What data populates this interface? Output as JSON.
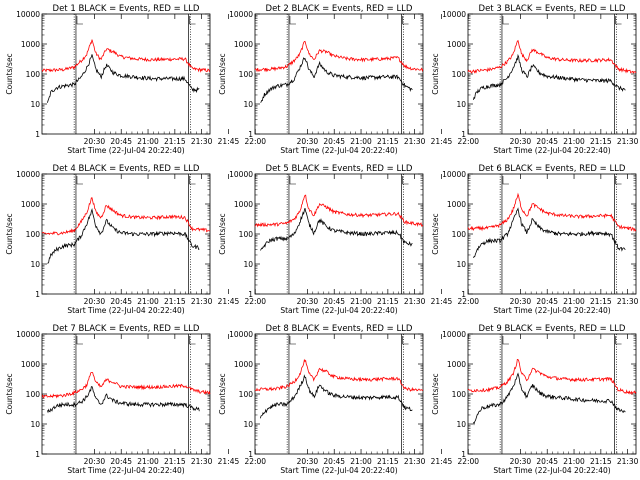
{
  "chart_data": {
    "type": "line",
    "y_scale": "log",
    "ylim": [
      1,
      10000
    ],
    "ylabel": "Counts/sec",
    "xlabel": "Start Time (22-Jul-04 20:22:40)",
    "x_ticks": [
      "20:30",
      "20:45",
      "21:00",
      "21:15",
      "21:30",
      "21:45",
      "22:00"
    ],
    "y_ticks": [
      "1",
      "10",
      "100",
      "1000",
      "10000"
    ],
    "x_range_minutes": [
      -22,
      72
    ],
    "vertical_lines": [
      {
        "style": "dotted",
        "x_minutes": -4
      },
      {
        "style": "solid",
        "x_minutes": -3
      },
      {
        "style": "solid",
        "x_minutes": 60
      },
      {
        "style": "dotted",
        "x_minutes": 61
      }
    ],
    "series_colors": {
      "events": "#000000",
      "lld": "#ff0000"
    },
    "panels": [
      {
        "title": "Det 1  BLACK = Events, RED = LLD",
        "lld_x": [
          -22,
          -10,
          -4,
          0,
          3,
          6,
          8,
          11,
          14,
          18,
          22,
          30,
          40,
          50,
          58,
          62,
          66,
          72
        ],
        "lld_y": [
          130,
          140,
          170,
          280,
          450,
          1400,
          500,
          300,
          680,
          550,
          380,
          320,
          300,
          310,
          320,
          150,
          140,
          130
        ],
        "ev_x": [
          -19,
          -17,
          -14,
          -10,
          -4,
          0,
          3,
          6,
          8,
          11,
          14,
          18,
          22,
          30,
          40,
          50,
          58,
          62,
          66
        ],
        "ev_y": [
          10,
          25,
          35,
          40,
          45,
          80,
          160,
          400,
          150,
          80,
          200,
          110,
          90,
          80,
          70,
          70,
          70,
          30,
          30
        ]
      },
      {
        "title": "Det 2  BLACK = Events, RED = LLD",
        "lld_x": [
          -22,
          -10,
          -4,
          0,
          3,
          6,
          8,
          11,
          14,
          18,
          22,
          30,
          40,
          50,
          58,
          62,
          66,
          72
        ],
        "lld_y": [
          140,
          150,
          180,
          280,
          450,
          1300,
          500,
          300,
          600,
          550,
          400,
          320,
          300,
          320,
          350,
          180,
          150,
          140
        ],
        "ev_x": [
          -19,
          -17,
          -14,
          -10,
          -4,
          0,
          3,
          6,
          8,
          11,
          14,
          18,
          22,
          30,
          40,
          50,
          58,
          62,
          66
        ],
        "ev_y": [
          10,
          20,
          30,
          40,
          45,
          70,
          160,
          380,
          150,
          80,
          220,
          120,
          90,
          80,
          75,
          80,
          80,
          40,
          30
        ]
      },
      {
        "title": "Det 3  BLACK = Events, RED = LLD",
        "lld_x": [
          -22,
          -10,
          -4,
          0,
          3,
          6,
          8,
          11,
          14,
          18,
          22,
          30,
          40,
          50,
          58,
          62,
          66,
          72
        ],
        "lld_y": [
          120,
          140,
          170,
          260,
          420,
          1400,
          450,
          290,
          650,
          500,
          350,
          300,
          280,
          290,
          300,
          150,
          130,
          110
        ],
        "ev_x": [
          -19,
          -17,
          -14,
          -10,
          -4,
          0,
          3,
          6,
          8,
          11,
          14,
          18,
          22,
          30,
          40,
          50,
          58,
          62,
          66
        ],
        "ev_y": [
          15,
          25,
          35,
          40,
          45,
          75,
          150,
          380,
          140,
          80,
          190,
          110,
          85,
          75,
          65,
          60,
          60,
          35,
          30
        ]
      },
      {
        "title": "Det 4  BLACK = Events, RED = LLD",
        "lld_x": [
          -22,
          -10,
          -4,
          0,
          3,
          6,
          8,
          11,
          14,
          18,
          22,
          30,
          40,
          50,
          58,
          62,
          66,
          72
        ],
        "lld_y": [
          100,
          110,
          130,
          260,
          520,
          1700,
          550,
          350,
          900,
          600,
          420,
          360,
          350,
          380,
          360,
          150,
          140,
          130
        ],
        "ev_x": [
          -19,
          -17,
          -14,
          -10,
          -4,
          0,
          3,
          6,
          8,
          11,
          14,
          18,
          22,
          30,
          40,
          50,
          58,
          62,
          66
        ],
        "ev_y": [
          10,
          20,
          30,
          40,
          45,
          90,
          220,
          600,
          200,
          100,
          280,
          150,
          110,
          100,
          100,
          110,
          100,
          40,
          35
        ]
      },
      {
        "title": "Det 5  BLACK = Events, RED = LLD",
        "lld_x": [
          -22,
          -10,
          -4,
          0,
          3,
          6,
          8,
          11,
          14,
          18,
          22,
          30,
          40,
          50,
          58,
          62,
          66,
          72
        ],
        "lld_y": [
          200,
          210,
          230,
          320,
          560,
          2200,
          700,
          420,
          1000,
          800,
          550,
          450,
          420,
          450,
          480,
          250,
          230,
          200
        ],
        "ev_x": [
          -19,
          -17,
          -14,
          -10,
          -4,
          0,
          3,
          6,
          8,
          11,
          14,
          18,
          22,
          30,
          40,
          50,
          58,
          62,
          66
        ],
        "ev_y": [
          25,
          40,
          60,
          70,
          70,
          100,
          250,
          700,
          230,
          110,
          300,
          180,
          130,
          110,
          100,
          110,
          110,
          50,
          45
        ]
      },
      {
        "title": "Det 6  BLACK = Events, RED = LLD",
        "lld_x": [
          -22,
          -10,
          -4,
          0,
          3,
          6,
          8,
          11,
          14,
          18,
          22,
          30,
          40,
          50,
          58,
          62,
          66,
          72
        ],
        "lld_y": [
          150,
          160,
          200,
          300,
          600,
          2000,
          700,
          400,
          1000,
          700,
          500,
          420,
          380,
          400,
          420,
          180,
          160,
          140
        ],
        "ev_x": [
          -19,
          -17,
          -14,
          -10,
          -4,
          0,
          3,
          6,
          8,
          11,
          14,
          18,
          22,
          30,
          40,
          50,
          58,
          62,
          66
        ],
        "ev_y": [
          15,
          30,
          50,
          60,
          60,
          100,
          250,
          700,
          220,
          110,
          300,
          160,
          120,
          100,
          100,
          110,
          100,
          35,
          30
        ]
      },
      {
        "title": "Det 7  BLACK = Events, RED = LLD",
        "lld_x": [
          -22,
          -10,
          -4,
          0,
          3,
          6,
          8,
          11,
          14,
          18,
          22,
          30,
          40,
          50,
          58,
          62,
          66,
          72
        ],
        "lld_y": [
          80,
          90,
          110,
          140,
          200,
          600,
          250,
          170,
          300,
          250,
          180,
          170,
          170,
          180,
          190,
          140,
          120,
          110
        ],
        "ev_x": [
          -19,
          -17,
          -14,
          -10,
          -4,
          0,
          3,
          6,
          8,
          11,
          14,
          18,
          22,
          30,
          40,
          50,
          58,
          62,
          66
        ],
        "ev_y": [
          25,
          30,
          40,
          45,
          45,
          55,
          80,
          170,
          70,
          45,
          90,
          60,
          50,
          45,
          45,
          45,
          45,
          35,
          30
        ]
      },
      {
        "title": "Det 8  BLACK = Events, RED = LLD",
        "lld_x": [
          -22,
          -10,
          -4,
          0,
          3,
          6,
          8,
          11,
          14,
          18,
          22,
          30,
          40,
          50,
          58,
          62,
          66,
          72
        ],
        "lld_y": [
          140,
          150,
          180,
          260,
          450,
          1400,
          500,
          300,
          700,
          550,
          380,
          320,
          300,
          320,
          330,
          150,
          140,
          130
        ],
        "ev_x": [
          -19,
          -17,
          -14,
          -10,
          -4,
          0,
          3,
          6,
          8,
          11,
          14,
          18,
          22,
          30,
          40,
          50,
          58,
          62,
          66
        ],
        "ev_y": [
          15,
          25,
          35,
          45,
          45,
          80,
          170,
          420,
          150,
          80,
          200,
          120,
          90,
          80,
          75,
          80,
          80,
          35,
          30
        ]
      },
      {
        "title": "Det 9  BLACK = Events, RED = LLD",
        "lld_x": [
          -22,
          -10,
          -4,
          0,
          3,
          6,
          8,
          11,
          14,
          18,
          22,
          30,
          40,
          50,
          58,
          62,
          66,
          72
        ],
        "lld_y": [
          130,
          140,
          170,
          260,
          430,
          1500,
          480,
          300,
          680,
          520,
          380,
          320,
          300,
          310,
          320,
          140,
          120,
          110
        ],
        "ev_x": [
          -19,
          -17,
          -14,
          -10,
          -4,
          0,
          3,
          6,
          8,
          11,
          14,
          18,
          22,
          30,
          40,
          50,
          58,
          62,
          66
        ],
        "ev_y": [
          10,
          20,
          35,
          40,
          45,
          80,
          170,
          420,
          150,
          80,
          200,
          110,
          85,
          75,
          65,
          60,
          60,
          30,
          25
        ]
      }
    ]
  }
}
